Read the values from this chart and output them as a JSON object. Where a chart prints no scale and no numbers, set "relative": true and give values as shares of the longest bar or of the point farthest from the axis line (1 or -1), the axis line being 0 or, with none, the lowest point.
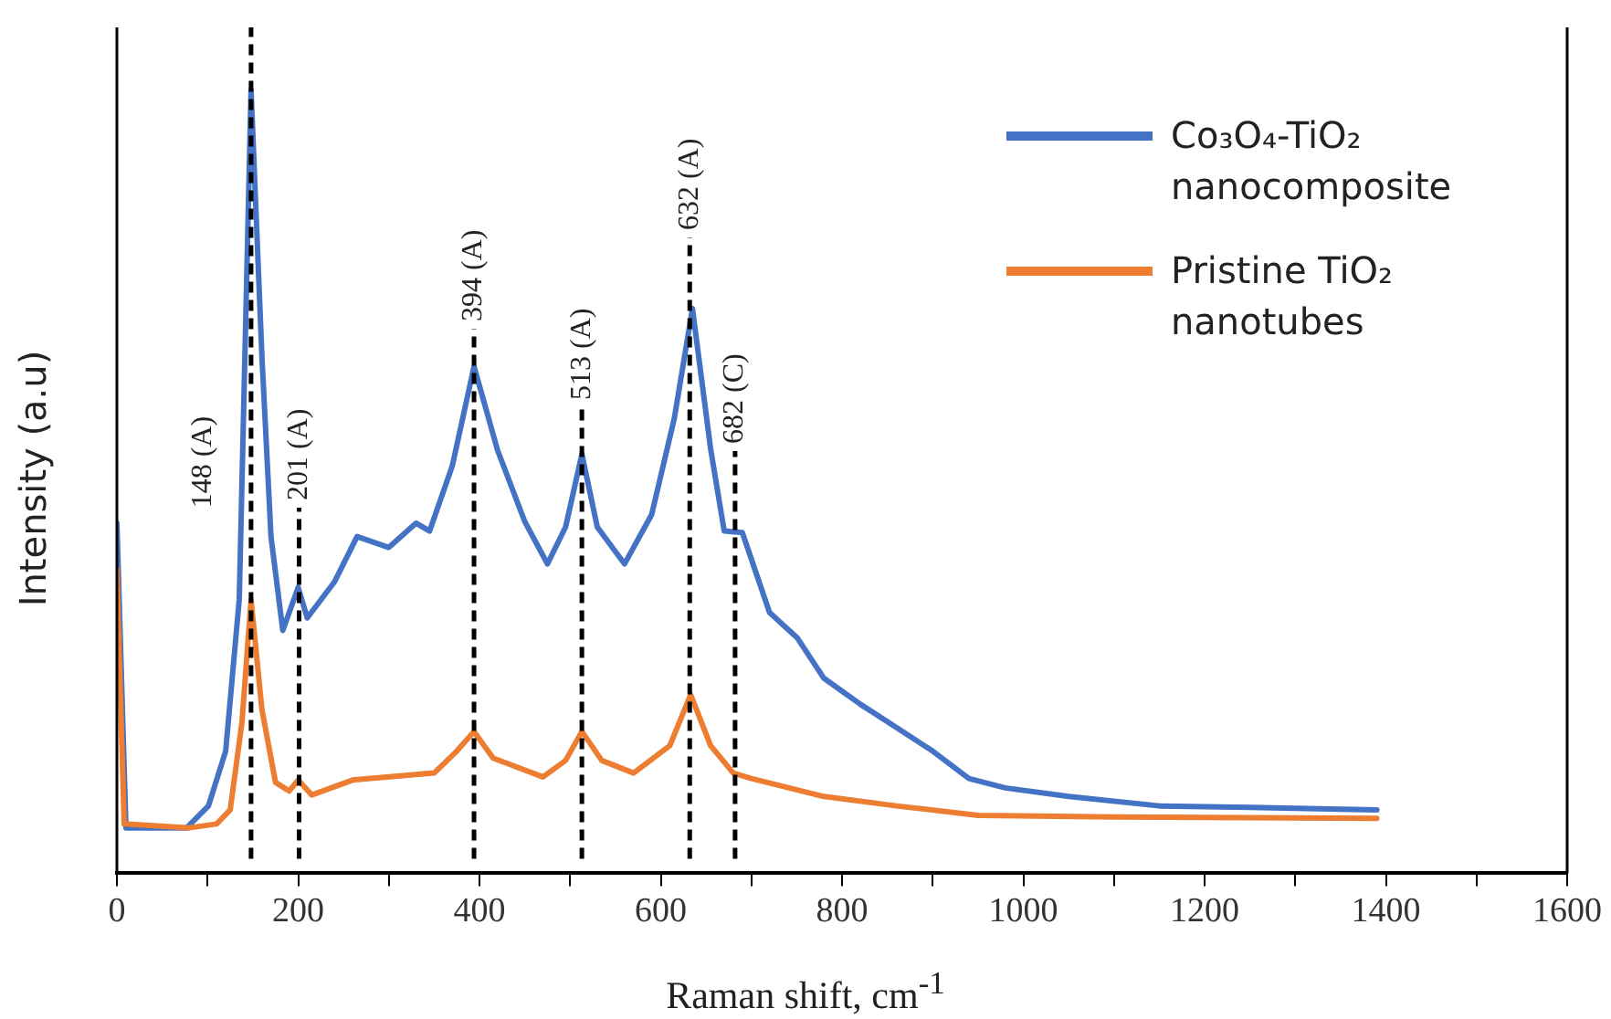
{
  "chart_data": {
    "type": "line",
    "xlabel": "Raman shift, cm$^{-1}$",
    "ylabel": "Intensity (a.u)",
    "relative": true,
    "legend": "top right",
    "marker": "none",
    "line_style": "solid",
    "grid": false,
    "xlim": [
      0,
      1600
    ],
    "xticks": [
      0,
      {
        "value": 100,
        "label": null
      },
      200,
      {
        "value": 300,
        "label": null
      },
      400,
      {
        "value": 500,
        "label": null
      },
      600,
      {
        "value": 700,
        "label": null
      },
      800,
      {
        "value": 900,
        "label": null
      },
      1000,
      {
        "value": 1100,
        "label": null
      },
      1200,
      {
        "value": 1300,
        "label": null
      },
      1400,
      {
        "value": 1500,
        "label": null
      },
      1600
    ],
    "series": [
      {
        "name": "Co₃O₄-TiO₂ nanocomposite",
        "color": "#4472c4",
        "x": [
          0,
          10,
          77,
          101,
          120,
          135,
          148,
          160,
          170,
          183,
          200,
          210,
          240,
          265,
          300,
          330,
          345,
          370,
          394,
          420,
          450,
          475,
          495,
          513,
          530,
          560,
          590,
          615,
          635,
          655,
          670,
          690,
          720,
          751,
          780,
          820,
          860,
          900,
          940,
          980,
          1050,
          1150,
          1250,
          1390
        ],
        "values": [
          0.447,
          0.058,
          0.058,
          0.086,
          0.156,
          0.35,
          1.0,
          0.66,
          0.43,
          0.31,
          0.365,
          0.326,
          0.372,
          0.43,
          0.416,
          0.447,
          0.437,
          0.52,
          0.647,
          0.54,
          0.449,
          0.395,
          0.442,
          0.535,
          0.442,
          0.395,
          0.458,
          0.581,
          0.721,
          0.542,
          0.437,
          0.435,
          0.333,
          0.3,
          0.249,
          0.216,
          0.186,
          0.156,
          0.121,
          0.109,
          0.098,
          0.086,
          0.084,
          0.081
        ]
      },
      {
        "name": "Pristine TiO₂ nanotubes",
        "color": "#ed7d31",
        "x": [
          0,
          8,
          80,
          110,
          125,
          138,
          148,
          160,
          175,
          190,
          200,
          215,
          260,
          350,
          375,
          394,
          415,
          470,
          495,
          513,
          535,
          570,
          610,
          633,
          655,
          680,
          700,
          780,
          860,
          950,
          1100,
          1390
        ],
        "values": [
          0.388,
          0.063,
          0.058,
          0.063,
          0.081,
          0.193,
          0.349,
          0.209,
          0.116,
          0.105,
          0.119,
          0.1,
          0.119,
          0.128,
          0.156,
          0.181,
          0.147,
          0.123,
          0.144,
          0.181,
          0.144,
          0.128,
          0.163,
          0.228,
          0.163,
          0.128,
          0.121,
          0.098,
          0.086,
          0.074,
          0.072,
          0.07
        ]
      }
    ],
    "ref_lines": [
      {
        "axis": "x",
        "value": 148,
        "label": "148 (A)",
        "color": "#000000",
        "line_style": "dashed"
      },
      {
        "axis": "x",
        "value": 201,
        "label": "201 (A)",
        "color": "#000000",
        "line_style": "dashed"
      },
      {
        "axis": "x",
        "value": 394,
        "label": "394 (A)",
        "color": "#000000",
        "line_style": "dashed"
      },
      {
        "axis": "x",
        "value": 513,
        "label": "513 (A)",
        "color": "#000000",
        "line_style": "dashed"
      },
      {
        "axis": "x",
        "value": 632,
        "label": "632 (A)",
        "color": "#000000",
        "line_style": "dashed"
      },
      {
        "axis": "x",
        "value": 682,
        "label": "682 (C)",
        "color": "#000000",
        "line_style": "dashed"
      }
    ]
  }
}
